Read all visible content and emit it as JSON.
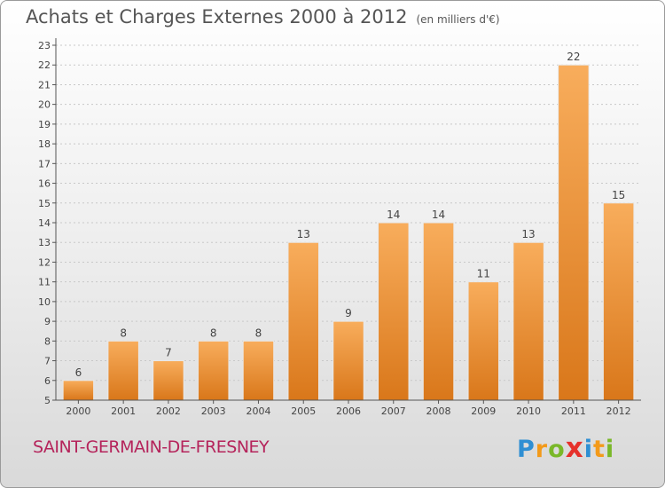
{
  "title": "Achats et Charges Externes 2000 à 2012",
  "unit_note": "(en milliers d'€)",
  "commune": "SAINT-GERMAIN-DE-FRESNEY",
  "logo": {
    "letters": [
      "P",
      "r",
      "o",
      "x",
      "i",
      "t",
      "i"
    ],
    "colors": [
      "#2f8fd3",
      "#f39a1a",
      "#7ab829",
      "#e6312b",
      "#2f8fd3",
      "#f39a1a",
      "#7ab829"
    ]
  },
  "colors": {
    "bar": "#f1922f",
    "bar_light": "#f7ad5d",
    "bar_dark": "#d87518",
    "axis": "#555555",
    "grid": "#c8c8c8"
  },
  "chart_data": {
    "type": "bar",
    "categories": [
      "2000",
      "2001",
      "2002",
      "2003",
      "2004",
      "2005",
      "2006",
      "2007",
      "2008",
      "2009",
      "2010",
      "2011",
      "2012"
    ],
    "values": [
      6,
      8,
      7,
      8,
      8,
      13,
      9,
      14,
      14,
      11,
      13,
      22,
      15
    ],
    "ylim": [
      5,
      23
    ],
    "yticks": [
      "5",
      "6",
      "7",
      "8",
      "9",
      "10",
      "11",
      "12",
      "13",
      "14",
      "15",
      "16",
      "17",
      "18",
      "19",
      "20",
      "21",
      "22",
      "23"
    ],
    "grid": true,
    "legend": "none"
  }
}
